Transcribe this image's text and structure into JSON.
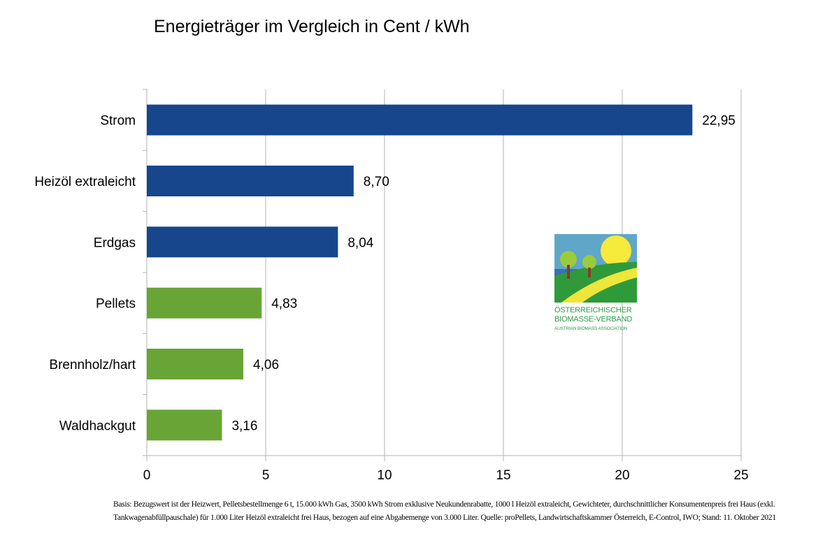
{
  "chart_data": {
    "type": "bar",
    "orientation": "horizontal",
    "title": "Energieträger im Vergleich in Cent / kWh",
    "categories": [
      "Strom",
      "Heizöl extraleicht",
      "Erdgas",
      "Pellets",
      "Brennholz/hart",
      "Waldhackgut"
    ],
    "values": [
      22.95,
      8.7,
      8.04,
      4.83,
      4.06,
      3.16
    ],
    "labels": [
      "22,95",
      "8,70",
      "8,04",
      "4,83",
      "4,06",
      "3,16"
    ],
    "bar_colors": [
      "#17468c",
      "#17468c",
      "#17468c",
      "#68a536",
      "#68a536",
      "#68a536"
    ],
    "xlim": [
      0,
      25
    ],
    "xticks": [
      0,
      5,
      10,
      15,
      20,
      25
    ],
    "grid": "vertical",
    "xlabel": "",
    "ylabel": ""
  },
  "logo": {
    "line1": "Österreichischer",
    "line2": "Biomasse-Verband",
    "line3": "Austrian Biomass Association"
  },
  "footnote": "Basis: Bezugswert ist der Heizwert, Pelletsbestellmenge 6 t, 15.000 kWh Gas, 3500 kWh Strom exklusive Neukundenrabatte, 1000 l Heizöl extraleicht, Gewichteter, durchschnittlicher Konsumentenpreis frei Haus (exkl. Tankwagenabfüllpauschale) für 1.000 Liter Heizöl extraleicht frei Haus, bezogen auf eine Abgabemenge von 3.000 Liter. Quelle: proPellets, Landwirtschaftskammer Österreich, E-Control, IWO; Stand: 11. Oktober 2021"
}
